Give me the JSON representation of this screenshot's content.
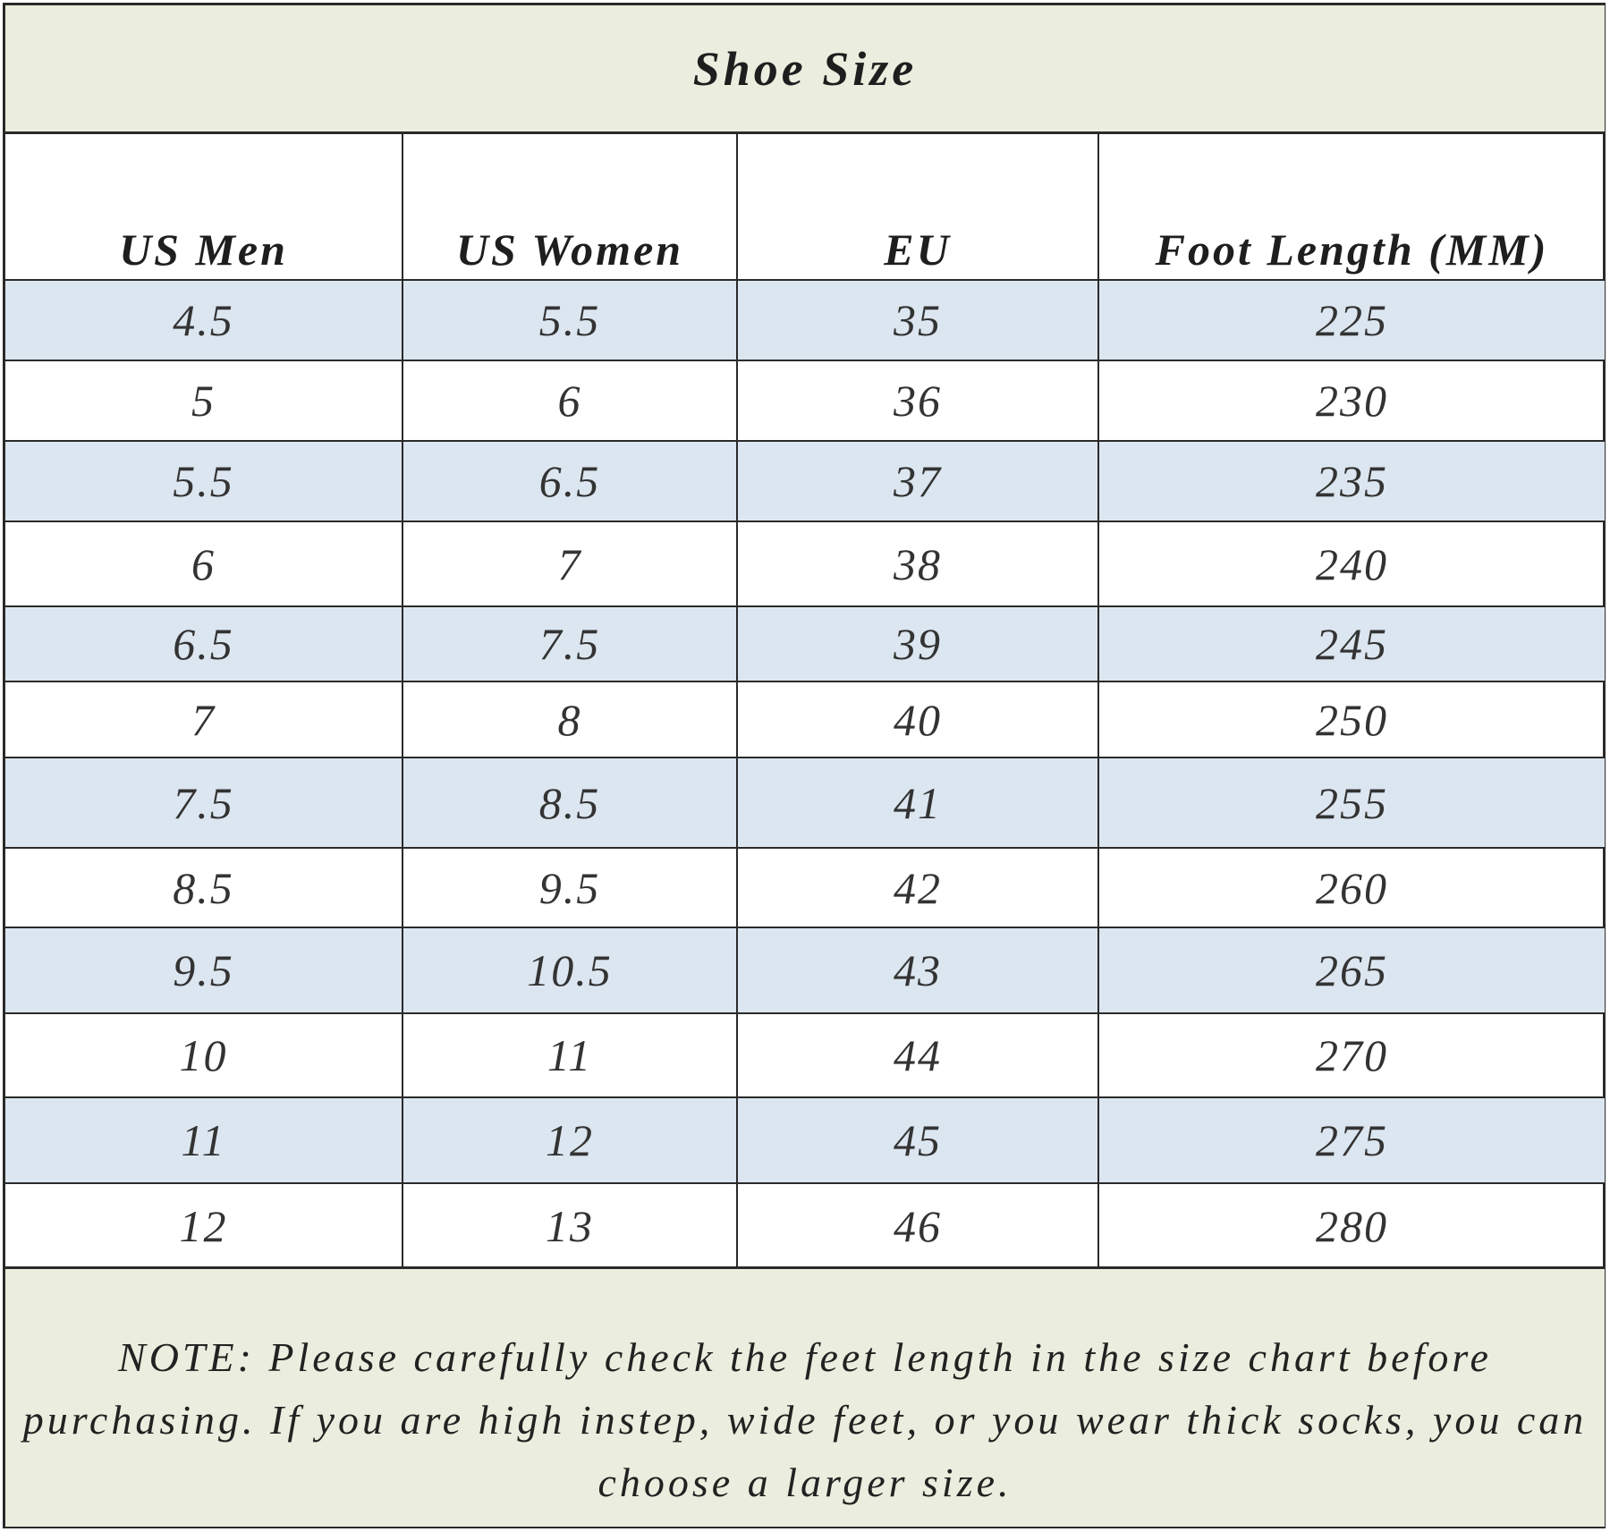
{
  "title": "Shoe Size",
  "columns": [
    "US Men",
    "US Women",
    "EU",
    "Foot Length (MM)"
  ],
  "rows": [
    [
      "4.5",
      "5.5",
      "35",
      "225"
    ],
    [
      "5",
      "6",
      "36",
      "230"
    ],
    [
      "5.5",
      "6.5",
      "37",
      "235"
    ],
    [
      "6",
      "7",
      "38",
      "240"
    ],
    [
      "6.5",
      "7.5",
      "39",
      "245"
    ],
    [
      "7",
      "8",
      "40",
      "250"
    ],
    [
      "7.5",
      "8.5",
      "41",
      "255"
    ],
    [
      "8.5",
      "9.5",
      "42",
      "260"
    ],
    [
      "9.5",
      "10.5",
      "43",
      "265"
    ],
    [
      "10",
      "11",
      "44",
      "270"
    ],
    [
      "11",
      "12",
      "45",
      "275"
    ],
    [
      "12",
      "13",
      "46",
      "280"
    ]
  ],
  "note": "NOTE: Please carefully check the feet length in the size chart before purchasing. If you are high instep, wide feet, or you wear thick socks, you can choose a larger size.",
  "colors": {
    "title_bg": "#ebeede",
    "stripe": "#dce6f0",
    "border": "#2a2a2a"
  }
}
